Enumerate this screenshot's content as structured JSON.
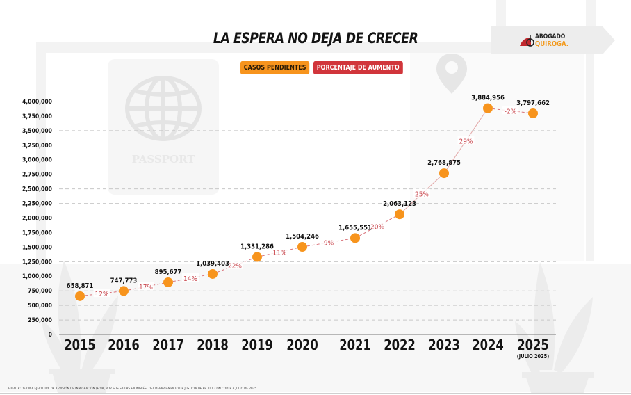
{
  "chart_data": {
    "type": "line",
    "title": "LA ESPERA NO DEJA DE CRECER",
    "legend": [
      "CASOS PENDIENTES",
      "PORCENTAJE DE AUMENTO"
    ],
    "legend_position": "top-center",
    "categories": [
      "2015",
      "2016",
      "2017",
      "2018",
      "2019",
      "2020",
      "2021",
      "2022",
      "2023",
      "2024",
      "2025"
    ],
    "category_note": {
      "2025": "(JULIO 2025)"
    },
    "series": [
      {
        "name": "CASOS PENDIENTES",
        "values": [
          658871,
          747773,
          895677,
          1039403,
          1331286,
          1504246,
          1655551,
          2063123,
          2768875,
          3884956,
          3797662
        ],
        "labels": [
          "658,871",
          "747,773",
          "895,677",
          "1,039,403",
          "1,331,286",
          "1,504,246",
          "1,655,551",
          "2,063,123",
          "2,768,875",
          "3,884,956",
          "3,797,662"
        ],
        "color": "#f7941d"
      },
      {
        "name": "PORCENTAJE DE AUMENTO",
        "segment_labels": [
          "12%",
          "17%",
          "14%",
          "22%",
          "11%",
          "9%",
          "20%",
          "25%",
          "29%",
          "-2%"
        ],
        "color": "#c8454c"
      }
    ],
    "yticks": [
      "0",
      "250,000",
      "500,000",
      "750,000",
      "1,000,000",
      "1,250,000",
      "1,500,000",
      "1,750,000",
      "2,000,000",
      "2,250,000",
      "2,500,000",
      "2,750,000",
      "3,000,000",
      "3,250,000",
      "3,500,000",
      "3,750,000",
      "4,000,000"
    ],
    "ylim": [
      0,
      4000000
    ],
    "ystep": 250000,
    "gridlines_at": [
      250000,
      500000,
      750000,
      1250000,
      2250000,
      2500000,
      3500000
    ],
    "grid": "dashed",
    "xlabel": "",
    "ylabel": ""
  },
  "brand": {
    "line1": "ABOGADO",
    "line2": "QUIROGA.",
    "accent": "#f39a1d",
    "mark_color": "#c0272d"
  },
  "background": {
    "passport_text": "PASSPORT"
  },
  "footer": {
    "source": "FUENTE: OFICINA EJECUTIVA DE REVISIÓN DE INMIGRACIÓN (EOIR, POR SUS SIGLAS EN INGLÉS) DEL DEPARTAMENTO DE JUSTICIA DE EE. UU. CON CORTE A JULIO DE 2025"
  }
}
